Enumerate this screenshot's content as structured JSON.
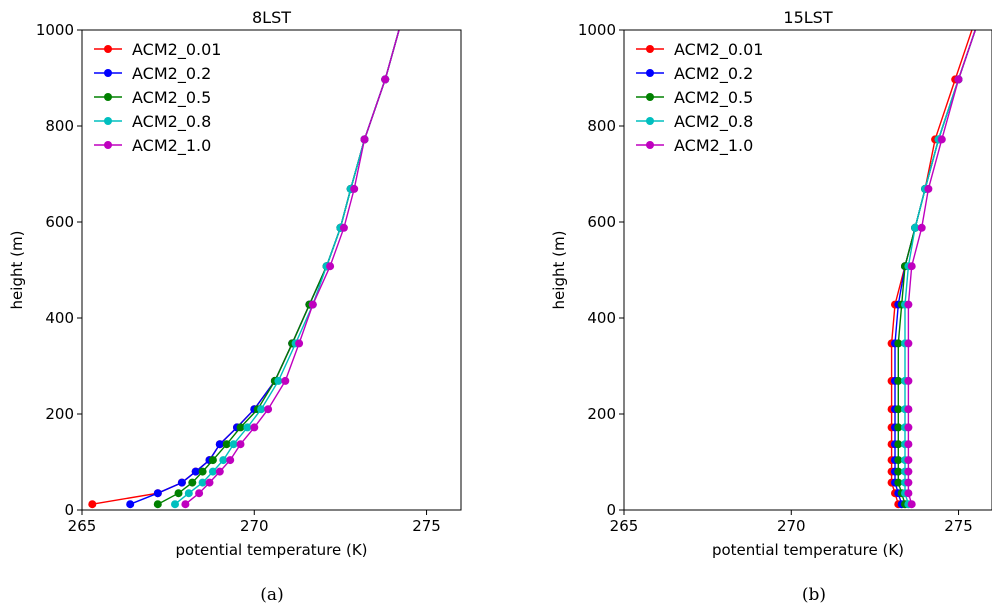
{
  "chart_data": [
    {
      "type": "line",
      "title": "8LST",
      "xlabel": "potential temperature (K)",
      "ylabel": "height (m)",
      "xlim": [
        265,
        276
      ],
      "ylim": [
        0,
        1000
      ],
      "xticks": [
        265,
        270,
        275
      ],
      "yticks": [
        0,
        200,
        400,
        600,
        800,
        1000
      ],
      "caption": "(a)",
      "legend_position": "upper-left",
      "grid": false,
      "heights": [
        12,
        35,
        57,
        80,
        104,
        137,
        172,
        210,
        269,
        347,
        428,
        508,
        588,
        669,
        772,
        897,
        1000
      ],
      "series": [
        {
          "name": "ACM2_0.01",
          "color": "#ff0000",
          "x": [
            265.3,
            267.2,
            267.9,
            268.3,
            268.7,
            269.0,
            269.5,
            270.0,
            270.6,
            271.1,
            271.6,
            272.1,
            272.5,
            272.8,
            273.2,
            273.8,
            274.2
          ]
        },
        {
          "name": "ACM2_0.2",
          "color": "#0000ff",
          "x": [
            266.4,
            267.2,
            267.9,
            268.3,
            268.7,
            269.0,
            269.5,
            270.0,
            270.6,
            271.1,
            271.6,
            272.1,
            272.5,
            272.8,
            273.2,
            273.8,
            274.2
          ]
        },
        {
          "name": "ACM2_0.5",
          "color": "#008000",
          "x": [
            267.2,
            267.8,
            268.2,
            268.5,
            268.8,
            269.2,
            269.6,
            270.1,
            270.6,
            271.1,
            271.6,
            272.1,
            272.5,
            272.8,
            273.2,
            273.8,
            274.2
          ]
        },
        {
          "name": "ACM2_0.8",
          "color": "#00bfbf",
          "x": [
            267.7,
            268.1,
            268.5,
            268.8,
            269.1,
            269.4,
            269.8,
            270.2,
            270.7,
            271.2,
            271.7,
            272.1,
            272.5,
            272.8,
            273.2,
            273.8,
            274.2
          ]
        },
        {
          "name": "ACM2_1.0",
          "color": "#bf00bf",
          "x": [
            268.0,
            268.4,
            268.7,
            269.0,
            269.3,
            269.6,
            270.0,
            270.4,
            270.9,
            271.3,
            271.7,
            272.2,
            272.6,
            272.9,
            273.2,
            273.8,
            274.2
          ]
        }
      ]
    },
    {
      "type": "line",
      "title": "15LST",
      "xlabel": "potential temperature (K)",
      "ylabel": "height (m)",
      "xlim": [
        265,
        276
      ],
      "ylim": [
        0,
        1000
      ],
      "xticks": [
        265,
        270,
        275
      ],
      "yticks": [
        0,
        200,
        400,
        600,
        800,
        1000
      ],
      "caption": "(b)",
      "legend_position": "upper-left",
      "grid": false,
      "heights": [
        12,
        35,
        57,
        80,
        104,
        137,
        172,
        210,
        269,
        347,
        428,
        508,
        588,
        669,
        772,
        897,
        1000
      ],
      "series": [
        {
          "name": "ACM2_0.01",
          "color": "#ff0000",
          "x": [
            273.2,
            273.1,
            273.0,
            273.0,
            273.0,
            273.0,
            273.0,
            273.0,
            273.0,
            273.0,
            273.1,
            273.4,
            273.7,
            274.0,
            274.3,
            274.9,
            275.4
          ]
        },
        {
          "name": "ACM2_0.2",
          "color": "#0000ff",
          "x": [
            273.3,
            273.2,
            273.1,
            273.1,
            273.1,
            273.1,
            273.1,
            273.1,
            273.1,
            273.1,
            273.2,
            273.4,
            273.7,
            274.0,
            274.4,
            275.0,
            275.5
          ]
        },
        {
          "name": "ACM2_0.5",
          "color": "#008000",
          "x": [
            273.4,
            273.3,
            273.2,
            273.2,
            273.2,
            273.2,
            273.2,
            273.2,
            273.2,
            273.2,
            273.3,
            273.4,
            273.7,
            274.0,
            274.4,
            275.0,
            275.5
          ]
        },
        {
          "name": "ACM2_0.8",
          "color": "#00bfbf",
          "x": [
            273.5,
            273.4,
            273.4,
            273.4,
            273.4,
            273.4,
            273.4,
            273.4,
            273.4,
            273.4,
            273.4,
            273.5,
            273.7,
            274.0,
            274.4,
            275.0,
            275.5
          ]
        },
        {
          "name": "ACM2_1.0",
          "color": "#bf00bf",
          "x": [
            273.6,
            273.5,
            273.5,
            273.5,
            273.5,
            273.5,
            273.5,
            273.5,
            273.5,
            273.5,
            273.5,
            273.6,
            273.9,
            274.1,
            274.5,
            275.0,
            275.5
          ]
        }
      ]
    }
  ]
}
